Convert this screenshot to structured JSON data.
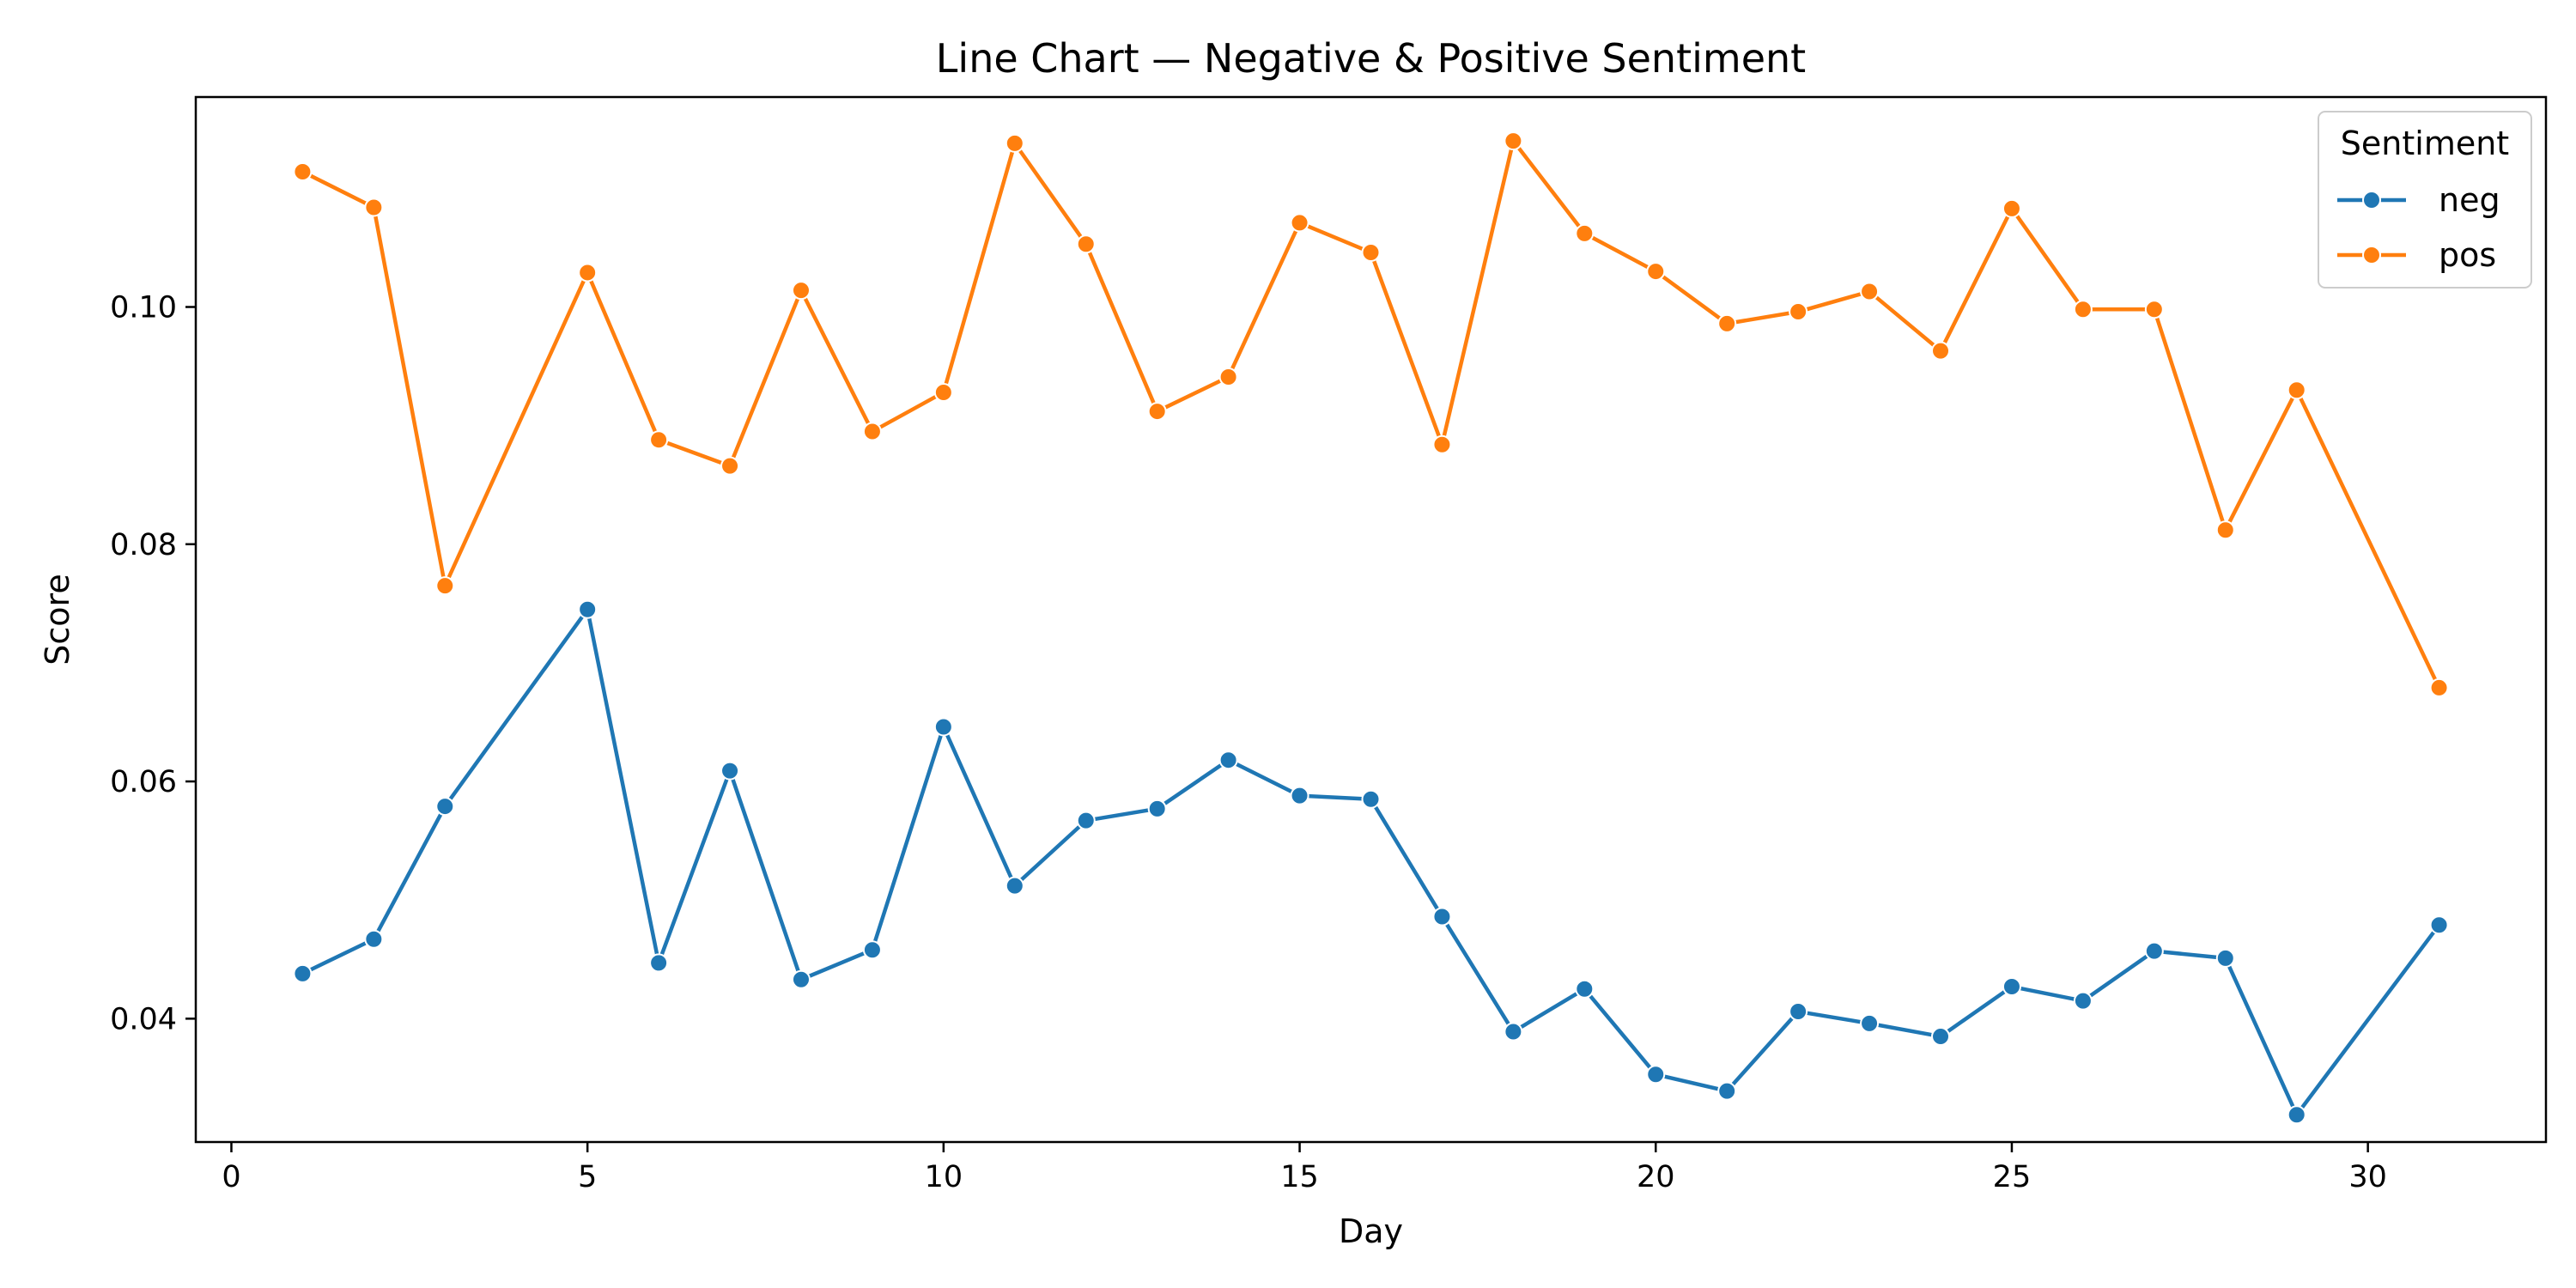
{
  "chart_data": {
    "type": "line",
    "title": "Line Chart — Negative & Positive Sentiment",
    "xlabel": "Day",
    "ylabel": "Score",
    "xlim": [
      -0.5,
      32.5
    ],
    "ylim": [
      0.0296,
      0.1177
    ],
    "xticks": [
      0,
      5,
      10,
      15,
      20,
      25,
      30
    ],
    "yticks": [
      0.04,
      0.06,
      0.08,
      0.1
    ],
    "ytick_labels": [
      "0.04",
      "0.06",
      "0.08",
      "0.10"
    ],
    "grid": false,
    "legend": {
      "title": "Sentiment",
      "placement": "top-right"
    },
    "x": [
      1,
      2,
      3,
      5,
      6,
      7,
      8,
      9,
      10,
      11,
      12,
      13,
      14,
      15,
      16,
      17,
      18,
      19,
      20,
      21,
      22,
      23,
      24,
      25,
      26,
      27,
      28,
      29,
      31
    ],
    "series": [
      {
        "name": "neg",
        "color": "#1f77b4",
        "values": [
          0.0438,
          0.0467,
          0.0579,
          0.0745,
          0.0447,
          0.0609,
          0.0433,
          0.0458,
          0.0646,
          0.0512,
          0.0567,
          0.0577,
          0.0618,
          0.0588,
          0.0585,
          0.0486,
          0.0389,
          0.0425,
          0.0353,
          0.0339,
          0.0406,
          0.0396,
          0.0385,
          0.0427,
          0.0415,
          0.0457,
          0.0451,
          0.0319,
          0.0479
        ]
      },
      {
        "name": "pos",
        "color": "#ff7f0e",
        "values": [
          0.1114,
          0.1084,
          0.0765,
          0.1029,
          0.0888,
          0.0866,
          0.1014,
          0.0895,
          0.0928,
          0.1138,
          0.1053,
          0.0912,
          0.0941,
          0.1071,
          0.1046,
          0.0884,
          0.114,
          0.1062,
          0.103,
          0.0986,
          0.0996,
          0.1013,
          0.0963,
          0.1083,
          0.0998,
          0.0998,
          0.0812,
          0.093,
          0.0679
        ]
      }
    ]
  }
}
